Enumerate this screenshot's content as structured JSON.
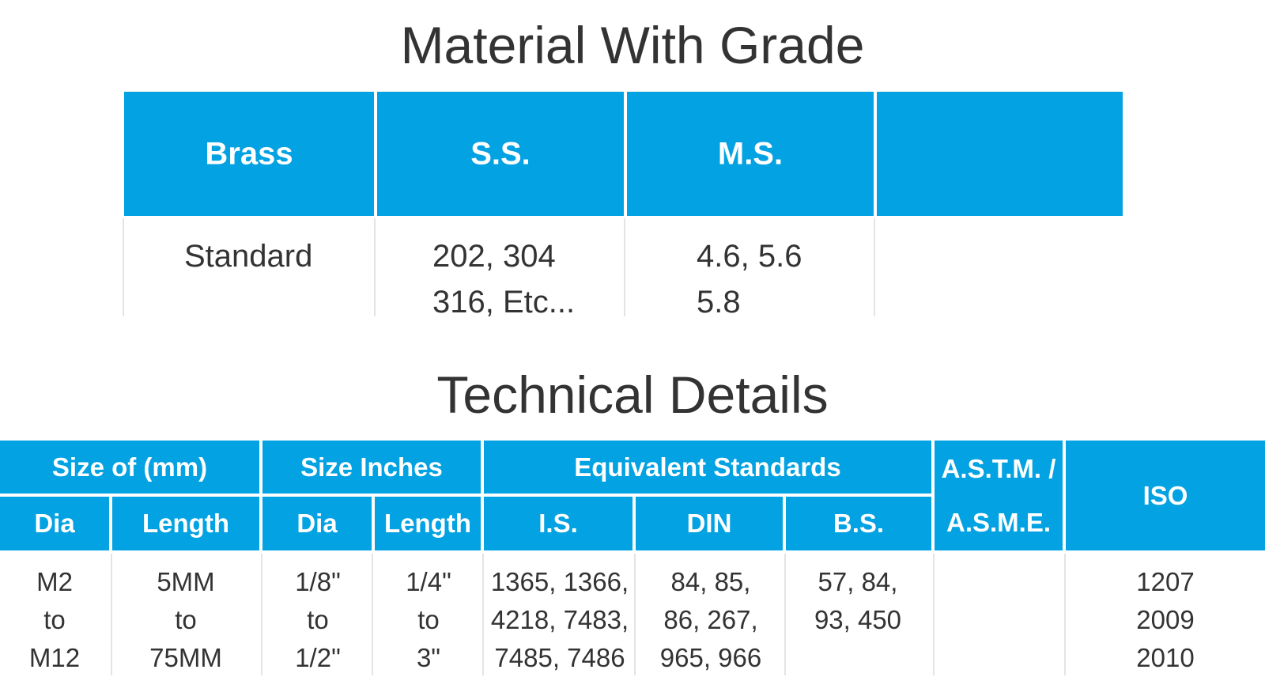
{
  "material_section": {
    "title": "Material With Grade",
    "headers": [
      "Brass",
      "S.S.",
      "M.S.",
      ""
    ],
    "row": [
      "Standard",
      "202, 304\n316, Etc...",
      "4.6, 5.6\n5.8",
      ""
    ]
  },
  "technical_section": {
    "title": "Technical Details",
    "group_headers": {
      "size_mm": "Size of (mm)",
      "size_inches": "Size Inches",
      "equivalent_standards": "Equivalent Standards",
      "astm": "A.S.T.M. /\nA.S.M.E.",
      "iso": "ISO"
    },
    "sub_headers": {
      "mm_dia": "Dia",
      "mm_length": "Length",
      "in_dia": "Dia",
      "in_length": "Length",
      "is": "I.S.",
      "din": "DIN",
      "bs": "B.S."
    },
    "row": {
      "mm_dia": "M2\nto\nM12",
      "mm_length": "5MM\nto\n75MM",
      "in_dia": "1/8\"\nto\n1/2\"",
      "in_length": "1/4\"\nto\n3\"",
      "is": "1365, 1366,\n4218, 7483,\n7485, 7486",
      "din": "84, 85,\n86, 267,\n965, 966",
      "bs": "57, 84,\n93, 450",
      "astm": "",
      "iso": "1207\n2009\n2010"
    }
  },
  "colors": {
    "header_blue": "#03a2e2",
    "header_text": "#ffffff",
    "body_text": "#333333"
  }
}
